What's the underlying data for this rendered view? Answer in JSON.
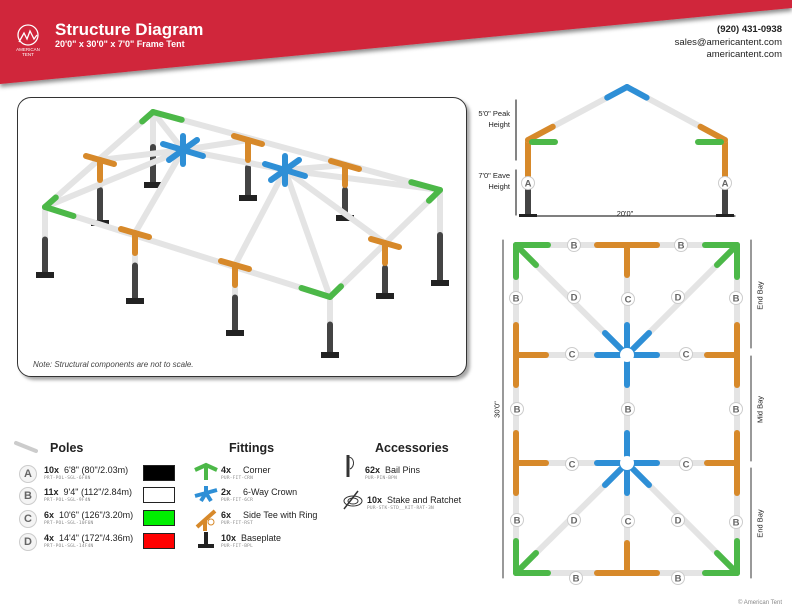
{
  "header": {
    "title": "Structure Diagram",
    "subtitle": "20'0\" x 30'0\" x 7'0\" Frame Tent",
    "logo_text": "AMERICAN TENT",
    "phone": "(920) 431-0938",
    "email": "sales@americantent.com",
    "website": "americantent.com",
    "brand_color": "#d0263a"
  },
  "render": {
    "note": "Note: Structural components are not to scale."
  },
  "elevation": {
    "peak_label": "5'0\" Peak Height",
    "eave_label": "7'0\" Eave Height",
    "width_label": "20'0\"",
    "pole_letter": "A"
  },
  "plan": {
    "length_label": "30'0\"",
    "bays": [
      "End Bay",
      "Mid Bay",
      "End Bay"
    ],
    "letters": {
      "A": "A",
      "B": "B",
      "C": "C",
      "D": "D"
    }
  },
  "poles": {
    "heading": "Poles",
    "items": [
      {
        "letter": "A",
        "qty": "10x",
        "label": "6'8\" (80\"/2.03m)",
        "part": "PRT-POL-SGL-6F8N",
        "color": "#000000"
      },
      {
        "letter": "B",
        "qty": "11x",
        "label": "9'4\" (112\"/2.84m)",
        "part": "PRT-POL-SGL-9F4N",
        "color": "#ffffff"
      },
      {
        "letter": "C",
        "qty": "6x",
        "label": "10'6\" (126\"/3.20m)",
        "part": "PRT-POL-SGL-10F6N",
        "color": "#00ee00"
      },
      {
        "letter": "D",
        "qty": "4x",
        "label": "14'4\" (172\"/4.36m)",
        "part": "PRT-POL-SGL-14F4N",
        "color": "#ff0000"
      }
    ]
  },
  "fittings": {
    "heading": "Fittings",
    "items": [
      {
        "qty": "4x",
        "label": "Corner",
        "part": "PUR-FIT-CRN",
        "icon": "corner-fitting-icon",
        "color": "#4cb848"
      },
      {
        "qty": "2x",
        "label": "6-Way Crown",
        "part": "PUR-FIT-6CR",
        "icon": "crown-fitting-icon",
        "color": "#2e8fd6"
      },
      {
        "qty": "6x",
        "label": "Side Tee with Ring",
        "part": "PUR-FIT-RST",
        "icon": "side-tee-fitting-icon",
        "color": "#d7892a"
      },
      {
        "qty": "10x",
        "label": "Baseplate",
        "part": "PUR-FIT-BPL",
        "icon": "baseplate-icon",
        "color": "#222222"
      }
    ]
  },
  "accessories": {
    "heading": "Accessories",
    "items": [
      {
        "qty": "62x",
        "label": "Bail Pins",
        "part": "PUR-PIN-BPN",
        "icon": "bail-pin-icon"
      },
      {
        "qty": "10x",
        "label": "Stake and Ratchet",
        "part": "PUR-STK-STD__KIT-RAT-3N",
        "icon": "stake-ratchet-icon"
      }
    ]
  },
  "footer": {
    "copyright": "© American Tent"
  }
}
